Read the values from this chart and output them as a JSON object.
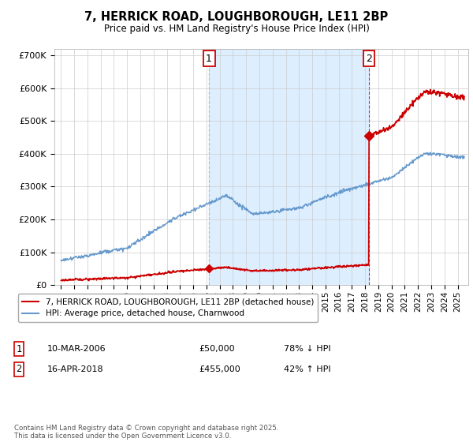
{
  "title": "7, HERRICK ROAD, LOUGHBOROUGH, LE11 2BP",
  "subtitle": "Price paid vs. HM Land Registry's House Price Index (HPI)",
  "ylabel_ticks": [
    "£0",
    "£100K",
    "£200K",
    "£300K",
    "£400K",
    "£500K",
    "£600K",
    "£700K"
  ],
  "ytick_values": [
    0,
    100000,
    200000,
    300000,
    400000,
    500000,
    600000,
    700000
  ],
  "ylim": [
    0,
    720000
  ],
  "xlim_start": 1994.5,
  "xlim_end": 2025.8,
  "purchase1_date": 2006.19,
  "purchase1_price": 50000,
  "purchase2_date": 2018.29,
  "purchase2_price": 455000,
  "line1_color": "#cc0000",
  "line2_color": "#6699cc",
  "shade_color": "#ddeeff",
  "marker_color": "#cc0000",
  "vline1_color": "#aabbcc",
  "vline2_color": "#cc0000",
  "label1": "7, HERRICK ROAD, LOUGHBOROUGH, LE11 2BP (detached house)",
  "label2": "HPI: Average price, detached house, Charnwood",
  "annotation1": "1",
  "annotation2": "2",
  "table_row1": [
    "1",
    "10-MAR-2006",
    "£50,000",
    "78% ↓ HPI"
  ],
  "table_row2": [
    "2",
    "16-APR-2018",
    "£455,000",
    "42% ↑ HPI"
  ],
  "footnote": "Contains HM Land Registry data © Crown copyright and database right 2025.\nThis data is licensed under the Open Government Licence v3.0.",
  "background_color": "#ffffff",
  "grid_color": "#cccccc"
}
